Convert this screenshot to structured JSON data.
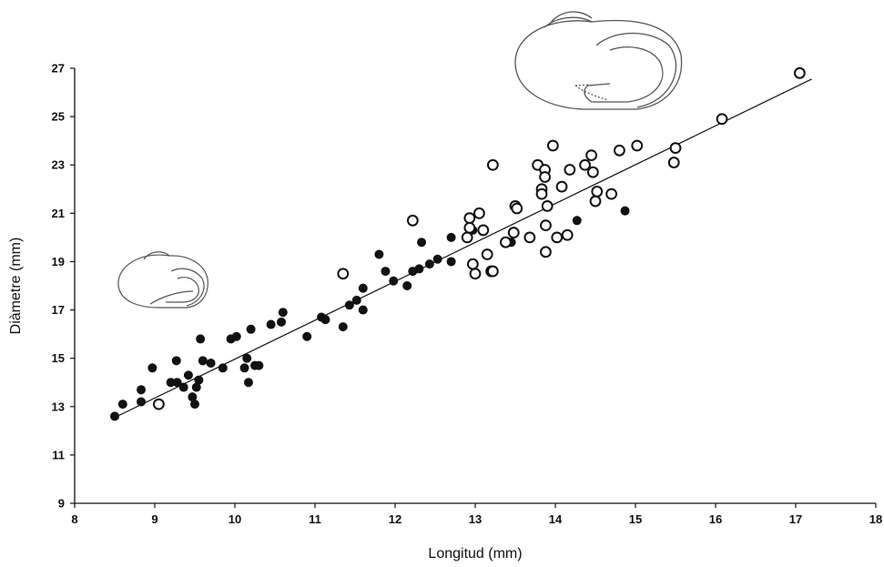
{
  "chart_data": {
    "type": "scatter",
    "title": "",
    "xlabel": "Longitud (mm)",
    "ylabel": "Diàmetre (mm)",
    "xlim": [
      8,
      18
    ],
    "ylim": [
      9,
      27
    ],
    "xticks": [
      "8",
      "9",
      "10",
      "11",
      "12",
      "13",
      "14",
      "15",
      "16",
      "17",
      "18"
    ],
    "yticks": [
      "9",
      "11",
      "13",
      "15",
      "17",
      "19",
      "21",
      "23",
      "25",
      "27"
    ],
    "grid": false,
    "legend": "none",
    "colors": {
      "axis": "#111111",
      "filled": "#111111",
      "open_stroke": "#111111",
      "open_fill": "#ffffff",
      "line": "#111111"
    },
    "series": [
      {
        "marker": "filled-circle",
        "points": [
          [
            8.5,
            12.6
          ],
          [
            8.6,
            13.1
          ],
          [
            8.83,
            13.2
          ],
          [
            8.83,
            13.7
          ],
          [
            8.97,
            14.6
          ],
          [
            9.05,
            13.1
          ],
          [
            9.2,
            14.0
          ],
          [
            9.27,
            14.9
          ],
          [
            9.28,
            14.0
          ],
          [
            9.36,
            13.8
          ],
          [
            9.42,
            14.3
          ],
          [
            9.47,
            13.4
          ],
          [
            9.5,
            13.1
          ],
          [
            9.52,
            13.8
          ],
          [
            9.55,
            14.1
          ],
          [
            9.57,
            15.8
          ],
          [
            9.6,
            14.9
          ],
          [
            9.7,
            14.8
          ],
          [
            9.85,
            14.6
          ],
          [
            9.95,
            15.8
          ],
          [
            10.02,
            15.9
          ],
          [
            10.12,
            14.6
          ],
          [
            10.15,
            15.0
          ],
          [
            10.17,
            14.0
          ],
          [
            10.2,
            16.2
          ],
          [
            10.25,
            14.7
          ],
          [
            10.3,
            14.7
          ],
          [
            10.45,
            16.4
          ],
          [
            10.58,
            16.5
          ],
          [
            10.6,
            16.9
          ],
          [
            10.9,
            15.9
          ],
          [
            11.08,
            16.7
          ],
          [
            11.13,
            16.6
          ],
          [
            11.35,
            16.3
          ],
          [
            11.43,
            17.2
          ],
          [
            11.52,
            17.4
          ],
          [
            11.6,
            17.9
          ],
          [
            11.6,
            17.0
          ],
          [
            11.8,
            19.3
          ],
          [
            11.88,
            18.6
          ],
          [
            11.98,
            18.2
          ],
          [
            12.15,
            18.0
          ],
          [
            12.22,
            18.6
          ],
          [
            12.3,
            18.7
          ],
          [
            12.33,
            19.8
          ],
          [
            12.43,
            18.9
          ],
          [
            12.53,
            19.1
          ],
          [
            12.7,
            20.0
          ],
          [
            12.7,
            19.0
          ],
          [
            12.97,
            20.3
          ],
          [
            13.45,
            19.8
          ],
          [
            14.27,
            20.7
          ],
          [
            14.87,
            21.1
          ]
        ]
      },
      {
        "marker": "open-circle",
        "points": [
          [
            9.05,
            13.1
          ],
          [
            11.35,
            18.5
          ],
          [
            12.22,
            20.7
          ],
          [
            12.9,
            20.0
          ],
          [
            12.93,
            20.8
          ],
          [
            12.93,
            20.4
          ],
          [
            12.97,
            18.9
          ],
          [
            13.0,
            18.5
          ],
          [
            13.05,
            21.0
          ],
          [
            13.1,
            20.3
          ],
          [
            13.15,
            19.3
          ],
          [
            13.2,
            18.6
          ],
          [
            13.22,
            18.6
          ],
          [
            13.22,
            23.0
          ],
          [
            13.38,
            19.8
          ],
          [
            13.48,
            20.2
          ],
          [
            13.5,
            21.3
          ],
          [
            13.52,
            21.2
          ],
          [
            13.68,
            20.0
          ],
          [
            13.78,
            23.0
          ],
          [
            13.83,
            22.0
          ],
          [
            13.83,
            21.8
          ],
          [
            13.87,
            22.8
          ],
          [
            13.87,
            22.5
          ],
          [
            13.88,
            20.5
          ],
          [
            13.88,
            19.4
          ],
          [
            13.9,
            21.3
          ],
          [
            13.97,
            23.8
          ],
          [
            14.02,
            20.0
          ],
          [
            14.08,
            22.1
          ],
          [
            14.15,
            20.1
          ],
          [
            14.18,
            22.8
          ],
          [
            14.37,
            23.0
          ],
          [
            14.45,
            23.4
          ],
          [
            14.47,
            22.7
          ],
          [
            14.5,
            21.5
          ],
          [
            14.52,
            21.9
          ],
          [
            14.7,
            21.8
          ],
          [
            14.8,
            23.6
          ],
          [
            15.02,
            23.8
          ],
          [
            15.48,
            23.1
          ],
          [
            15.5,
            23.7
          ],
          [
            16.08,
            24.9
          ],
          [
            17.05,
            26.8
          ]
        ]
      }
    ],
    "trendline": {
      "x": [
        8.5,
        17.2
      ],
      "y": [
        12.55,
        26.55
      ]
    }
  }
}
